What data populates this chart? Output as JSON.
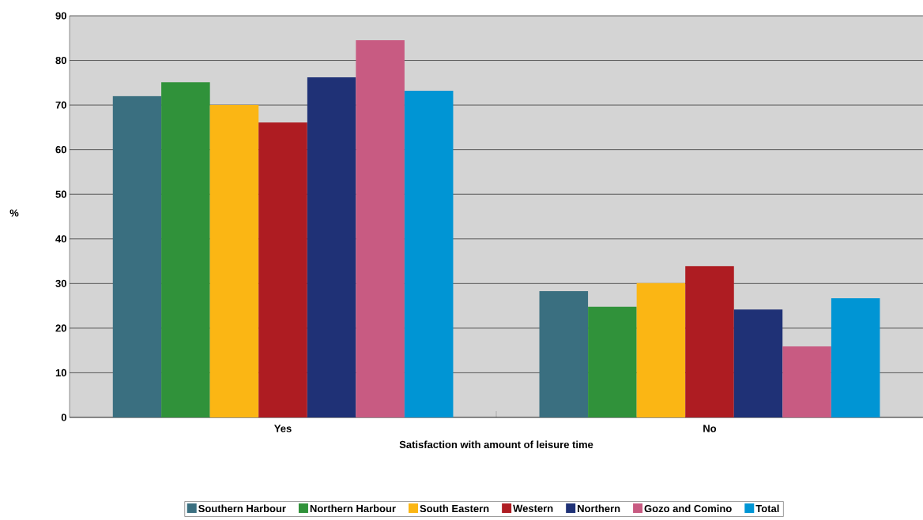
{
  "chart_data": {
    "type": "bar",
    "xlabel": "Satisfaction with amount of leisure time",
    "ylabel": "%",
    "categories": [
      "Yes",
      "No"
    ],
    "series": [
      {
        "name": "Southern Harbour",
        "color": "#3a6f80",
        "values": [
          72,
          28.3
        ]
      },
      {
        "name": "Northern Harbour",
        "color": "#30923a",
        "values": [
          75.1,
          24.8
        ]
      },
      {
        "name": "South Eastern",
        "color": "#fbb614",
        "values": [
          70,
          30.1
        ]
      },
      {
        "name": "Western",
        "color": "#ae1c22",
        "values": [
          66.1,
          33.9
        ]
      },
      {
        "name": "Northern",
        "color": "#1f3176",
        "values": [
          76.2,
          24.2
        ]
      },
      {
        "name": "Gozo and Comino",
        "color": "#c85b82",
        "values": [
          84.5,
          15.9
        ]
      },
      {
        "name": "Total",
        "color": "#0095d4",
        "values": [
          73.2,
          26.7
        ]
      }
    ],
    "ylim": [
      0,
      90
    ],
    "yticks": [
      0,
      10,
      20,
      30,
      40,
      50,
      60,
      70,
      80,
      90
    ],
    "grid": "y",
    "legend": "bottom"
  }
}
